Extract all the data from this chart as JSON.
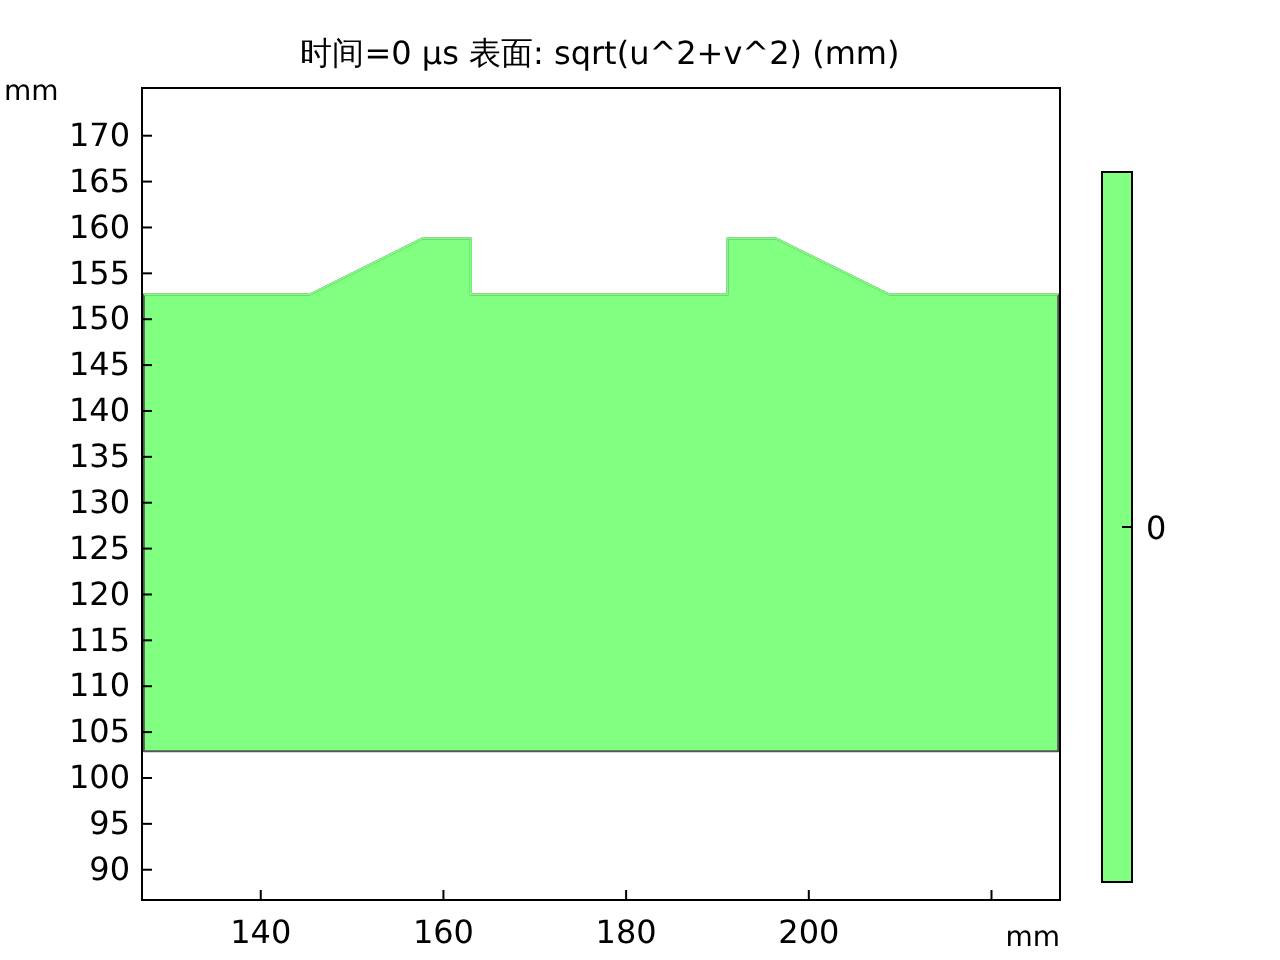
{
  "chart_data": {
    "type": "line",
    "title": "时间=0 µs   表面: sqrt(u^2+v^2) (mm)",
    "xlabel": "mm",
    "ylabel": "mm",
    "x": [
      127.2,
      145.4,
      157.7,
      163.0,
      163.0,
      191.1,
      191.1,
      196.4,
      208.8,
      227.3
    ],
    "series": [
      {
        "color": "#80ff80",
        "values": [
          152.7,
          152.7,
          158.8,
          158.8,
          152.7,
          152.7,
          158.8,
          158.8,
          152.7,
          152.7
        ],
        "upper": [
          152.7,
          152.7,
          158.8,
          158.8,
          152.7,
          152.7,
          158.8,
          158.8,
          152.7,
          152.7
        ],
        "lower": [
          102.9,
          102.9,
          102.9,
          102.9,
          102.9,
          102.9,
          102.9,
          102.9,
          102.9,
          102.9
        ]
      }
    ],
    "xlim": [
      127,
      227.5
    ],
    "ylim": [
      86.7,
      175.2
    ],
    "xticks": [
      140,
      160,
      180,
      200,
      {
        "value": 220,
        "label": null
      }
    ],
    "yticks": [
      90,
      95,
      100,
      105,
      110,
      115,
      120,
      125,
      130,
      135,
      140,
      145,
      150,
      155,
      160,
      165,
      170
    ],
    "annotations": [
      "0"
    ]
  }
}
